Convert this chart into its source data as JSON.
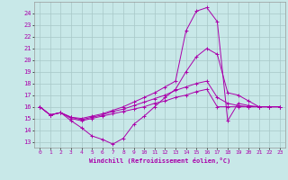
{
  "xlabel": "Windchill (Refroidissement éolien,°C)",
  "xlim": [
    -0.5,
    23.5
  ],
  "ylim": [
    12.5,
    25.0
  ],
  "yticks": [
    13,
    14,
    15,
    16,
    17,
    18,
    19,
    20,
    21,
    22,
    23,
    24
  ],
  "xticks": [
    0,
    1,
    2,
    3,
    4,
    5,
    6,
    7,
    8,
    9,
    10,
    11,
    12,
    13,
    14,
    15,
    16,
    17,
    18,
    19,
    20,
    21,
    22,
    23
  ],
  "bg_color": "#c8e8e8",
  "grid_color": "#a8c8c8",
  "line_color": "#aa00aa",
  "curves": [
    {
      "x": [
        0,
        1,
        2,
        3,
        4,
        5,
        6,
        7,
        8,
        9,
        10,
        11,
        12,
        13,
        14,
        15,
        16,
        17,
        18,
        19,
        20,
        21,
        22,
        23
      ],
      "y": [
        16,
        15.3,
        15.5,
        14.8,
        14.2,
        13.5,
        13.2,
        12.8,
        13.3,
        14.5,
        15.2,
        16.0,
        16.8,
        17.5,
        19.0,
        20.3,
        21.0,
        20.5,
        17.2,
        17.0,
        16.5,
        16.0,
        16.0,
        16.0
      ]
    },
    {
      "x": [
        0,
        1,
        2,
        3,
        4,
        5,
        6,
        7,
        8,
        9,
        10,
        11,
        12,
        13,
        14,
        15,
        16,
        17,
        18,
        19,
        20,
        21,
        22,
        23
      ],
      "y": [
        16,
        15.3,
        15.5,
        15.0,
        14.8,
        15.0,
        15.2,
        15.4,
        15.6,
        15.8,
        16.0,
        16.3,
        16.5,
        16.8,
        17.0,
        17.3,
        17.5,
        16.0,
        16.0,
        16.0,
        16.0,
        16.0,
        16.0,
        16.0
      ]
    },
    {
      "x": [
        0,
        1,
        2,
        3,
        4,
        5,
        6,
        7,
        8,
        9,
        10,
        11,
        12,
        13,
        14,
        15,
        16,
        17,
        18,
        19,
        20,
        21,
        22,
        23
      ],
      "y": [
        16,
        15.3,
        15.5,
        15.1,
        14.9,
        15.1,
        15.3,
        15.6,
        15.8,
        16.1,
        16.4,
        16.7,
        17.0,
        17.4,
        17.7,
        18.0,
        18.2,
        16.8,
        16.3,
        16.1,
        16.0,
        16.0,
        16.0,
        16.0
      ]
    },
    {
      "x": [
        0,
        1,
        2,
        3,
        4,
        5,
        6,
        7,
        8,
        9,
        10,
        11,
        12,
        13,
        14,
        15,
        16,
        17,
        18,
        19,
        20,
        21,
        22,
        23
      ],
      "y": [
        16,
        15.3,
        15.5,
        15.1,
        15.0,
        15.2,
        15.4,
        15.7,
        16.0,
        16.4,
        16.8,
        17.2,
        17.7,
        18.2,
        22.5,
        24.2,
        24.5,
        23.3,
        14.8,
        16.3,
        16.1,
        16.0,
        16.0,
        16.0
      ]
    }
  ]
}
